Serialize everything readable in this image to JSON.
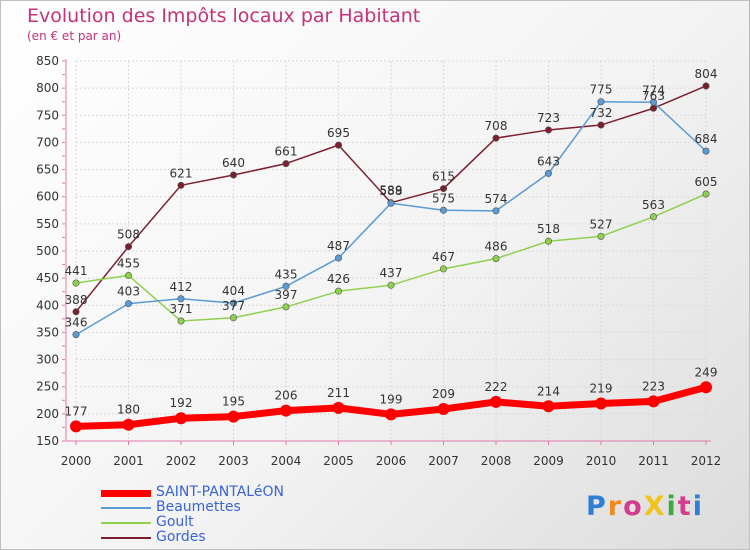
{
  "title": "Evolution des Impôts locaux par Habitant",
  "subtitle": "(en € et par an)",
  "brand": {
    "text": "ProXiti",
    "letter_colors": [
      "#2f7fd6",
      "#f08a1c",
      "#d43d8e",
      "#f0c419",
      "#3fa83f",
      "#d43d8e",
      "#2f7fd6"
    ]
  },
  "chart_data": {
    "type": "line",
    "title": "Evolution des Impôts locaux par Habitant",
    "subtitle": "(en € et par an)",
    "xlabel": "",
    "ylabel": "",
    "x": [
      "2000",
      "2001",
      "2002",
      "2003",
      "2004",
      "2005",
      "2006",
      "2007",
      "2008",
      "2009",
      "2010",
      "2011",
      "2012"
    ],
    "y_ticks": [
      150,
      200,
      250,
      300,
      350,
      400,
      450,
      500,
      550,
      600,
      650,
      700,
      750,
      800,
      850
    ],
    "ylim": [
      150,
      850
    ],
    "grid": true,
    "legend_position": "bottom-left",
    "series": [
      {
        "name": "SAINT-PANTALéON",
        "color": "#ff0000",
        "emphasis": true,
        "values": [
          177,
          180,
          192,
          195,
          206,
          211,
          199,
          209,
          222,
          214,
          219,
          223,
          249
        ]
      },
      {
        "name": "Beaumettes",
        "color": "#5b9bd5",
        "values": [
          346,
          403,
          412,
          404,
          435,
          487,
          588,
          575,
          574,
          643,
          775,
          774,
          684
        ]
      },
      {
        "name": "Goult",
        "color": "#8fd14f",
        "values": [
          441,
          455,
          371,
          377,
          397,
          426,
          437,
          467,
          486,
          518,
          527,
          563,
          605
        ]
      },
      {
        "name": "Gordes",
        "color": "#7b1f2e",
        "values": [
          388,
          508,
          621,
          640,
          661,
          695,
          589,
          615,
          708,
          723,
          732,
          763,
          804
        ]
      }
    ]
  }
}
